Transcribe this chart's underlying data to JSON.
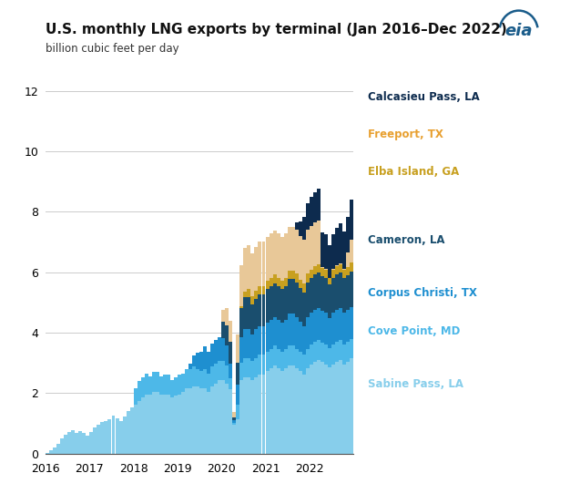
{
  "title": "U.S. monthly LNG exports by terminal (Jan 2016–Dec 2022)",
  "subtitle": "billion cubic feet per day",
  "ylim": [
    0,
    12
  ],
  "yticks": [
    0,
    2,
    4,
    6,
    8,
    10,
    12
  ],
  "xtick_years": [
    "2016",
    "2017",
    "2018",
    "2019",
    "2020",
    "2021",
    "2022"
  ],
  "bg_color": "#ffffff",
  "grid_color": "#cccccc",
  "colors": [
    "#87CEEB",
    "#4DB8E8",
    "#1E8FD0",
    "#1A4E6E",
    "#C8A020",
    "#E8C898",
    "#0D2B4E"
  ],
  "legend_labels": [
    "Calcasieu Pass, LA",
    "Freeport, TX",
    "Elba Island, GA",
    "Cameron, LA",
    "Corpus Christi, TX",
    "Cove Point, MD",
    "Sabine Pass, LA"
  ],
  "legend_text_colors": [
    "#0D2B4E",
    "#E8A030",
    "#C8A020",
    "#1A4E6E",
    "#1E8FD0",
    "#4DB8E8",
    "#87CEEB"
  ],
  "sabine_pass": [
    0.02,
    0.1,
    0.2,
    0.32,
    0.5,
    0.62,
    0.7,
    0.78,
    0.68,
    0.75,
    0.68,
    0.58,
    0.72,
    0.85,
    0.95,
    1.05,
    1.08,
    1.15,
    1.25,
    1.18,
    1.08,
    1.22,
    1.4,
    1.52,
    1.62,
    1.75,
    1.85,
    1.95,
    1.95,
    2.05,
    2.05,
    1.95,
    1.95,
    1.95,
    1.85,
    1.92,
    1.95,
    2.05,
    2.15,
    2.15,
    2.22,
    2.22,
    2.15,
    2.15,
    2.05,
    2.22,
    2.32,
    2.42,
    2.42,
    2.32,
    2.12,
    0.95,
    1.15,
    2.42,
    2.52,
    2.52,
    2.42,
    2.52,
    2.62,
    2.62,
    2.72,
    2.82,
    2.92,
    2.82,
    2.72,
    2.82,
    2.92,
    2.92,
    2.82,
    2.72,
    2.62,
    2.82,
    2.95,
    3.05,
    3.1,
    3.02,
    2.95,
    2.85,
    2.95,
    3.05,
    3.1,
    2.95,
    3.05,
    3.15
  ],
  "cove_point": [
    0.0,
    0.0,
    0.0,
    0.0,
    0.0,
    0.0,
    0.0,
    0.0,
    0.0,
    0.0,
    0.0,
    0.0,
    0.0,
    0.0,
    0.0,
    0.0,
    0.0,
    0.0,
    0.0,
    0.0,
    0.0,
    0.0,
    0.0,
    0.0,
    0.55,
    0.65,
    0.68,
    0.68,
    0.6,
    0.65,
    0.65,
    0.6,
    0.65,
    0.65,
    0.58,
    0.6,
    0.65,
    0.6,
    0.65,
    0.65,
    0.65,
    0.58,
    0.58,
    0.65,
    0.58,
    0.65,
    0.65,
    0.65,
    0.65,
    0.58,
    0.38,
    0.08,
    0.48,
    0.58,
    0.65,
    0.65,
    0.65,
    0.65,
    0.65,
    0.65,
    0.65,
    0.65,
    0.65,
    0.65,
    0.65,
    0.65,
    0.65,
    0.65,
    0.65,
    0.65,
    0.65,
    0.65,
    0.65,
    0.65,
    0.65,
    0.65,
    0.65,
    0.65,
    0.65,
    0.65,
    0.65,
    0.65,
    0.65,
    0.65
  ],
  "corpus_christi": [
    0.0,
    0.0,
    0.0,
    0.0,
    0.0,
    0.0,
    0.0,
    0.0,
    0.0,
    0.0,
    0.0,
    0.0,
    0.0,
    0.0,
    0.0,
    0.0,
    0.0,
    0.0,
    0.0,
    0.0,
    0.0,
    0.0,
    0.0,
    0.0,
    0.0,
    0.0,
    0.0,
    0.0,
    0.0,
    0.0,
    0.0,
    0.0,
    0.0,
    0.0,
    0.0,
    0.0,
    0.0,
    0.0,
    0.0,
    0.18,
    0.38,
    0.55,
    0.65,
    0.75,
    0.75,
    0.78,
    0.78,
    0.78,
    0.75,
    0.68,
    0.48,
    0.08,
    0.65,
    0.85,
    0.95,
    0.95,
    0.88,
    0.95,
    0.95,
    0.95,
    0.95,
    0.95,
    0.95,
    0.95,
    0.95,
    0.95,
    1.05,
    1.05,
    1.05,
    0.98,
    0.95,
    1.05,
    1.05,
    1.05,
    1.05,
    1.05,
    1.05,
    0.98,
    1.05,
    1.05,
    1.05,
    1.05,
    1.05,
    1.05
  ],
  "cameron": [
    0.0,
    0.0,
    0.0,
    0.0,
    0.0,
    0.0,
    0.0,
    0.0,
    0.0,
    0.0,
    0.0,
    0.0,
    0.0,
    0.0,
    0.0,
    0.0,
    0.0,
    0.0,
    0.0,
    0.0,
    0.0,
    0.0,
    0.0,
    0.0,
    0.0,
    0.0,
    0.0,
    0.0,
    0.0,
    0.0,
    0.0,
    0.0,
    0.0,
    0.0,
    0.0,
    0.0,
    0.0,
    0.0,
    0.0,
    0.0,
    0.0,
    0.0,
    0.0,
    0.0,
    0.0,
    0.0,
    0.0,
    0.0,
    0.55,
    0.65,
    0.72,
    0.08,
    0.72,
    0.95,
    1.05,
    1.05,
    0.98,
    0.98,
    1.05,
    1.05,
    1.12,
    1.12,
    1.12,
    1.12,
    1.12,
    1.12,
    1.15,
    1.15,
    1.15,
    1.12,
    1.12,
    1.15,
    1.15,
    1.18,
    1.18,
    1.15,
    1.15,
    1.12,
    1.15,
    1.18,
    1.18,
    1.15,
    1.15,
    1.18
  ],
  "elba_island": [
    0.0,
    0.0,
    0.0,
    0.0,
    0.0,
    0.0,
    0.0,
    0.0,
    0.0,
    0.0,
    0.0,
    0.0,
    0.0,
    0.0,
    0.0,
    0.0,
    0.0,
    0.0,
    0.0,
    0.0,
    0.0,
    0.0,
    0.0,
    0.0,
    0.0,
    0.0,
    0.0,
    0.0,
    0.0,
    0.0,
    0.0,
    0.0,
    0.0,
    0.0,
    0.0,
    0.0,
    0.0,
    0.0,
    0.0,
    0.0,
    0.0,
    0.0,
    0.0,
    0.0,
    0.0,
    0.0,
    0.0,
    0.0,
    0.0,
    0.0,
    0.0,
    0.0,
    0.0,
    0.08,
    0.18,
    0.28,
    0.28,
    0.28,
    0.28,
    0.28,
    0.28,
    0.28,
    0.28,
    0.28,
    0.28,
    0.28,
    0.28,
    0.28,
    0.28,
    0.28,
    0.28,
    0.28,
    0.28,
    0.28,
    0.28,
    0.28,
    0.28,
    0.2,
    0.28,
    0.28,
    0.28,
    0.28,
    0.28,
    0.28
  ],
  "freeport": [
    0.0,
    0.0,
    0.0,
    0.0,
    0.0,
    0.0,
    0.0,
    0.0,
    0.0,
    0.0,
    0.0,
    0.0,
    0.0,
    0.0,
    0.0,
    0.0,
    0.0,
    0.0,
    0.0,
    0.0,
    0.0,
    0.0,
    0.0,
    0.0,
    0.0,
    0.0,
    0.0,
    0.0,
    0.0,
    0.0,
    0.0,
    0.0,
    0.0,
    0.0,
    0.0,
    0.0,
    0.0,
    0.0,
    0.0,
    0.0,
    0.0,
    0.0,
    0.0,
    0.0,
    0.0,
    0.0,
    0.0,
    0.0,
    0.38,
    0.58,
    0.68,
    0.18,
    0.95,
    1.35,
    1.45,
    1.45,
    1.42,
    1.45,
    1.45,
    1.45,
    1.45,
    1.45,
    1.45,
    1.45,
    1.45,
    1.45,
    1.45,
    1.45,
    1.45,
    1.45,
    1.45,
    1.45,
    1.45,
    1.45,
    1.45,
    0.02,
    0.02,
    0.02,
    0.02,
    0.02,
    0.02,
    0.02,
    0.48,
    0.75
  ],
  "calcasieu_pass": [
    0.0,
    0.0,
    0.0,
    0.0,
    0.0,
    0.0,
    0.0,
    0.0,
    0.0,
    0.0,
    0.0,
    0.0,
    0.0,
    0.0,
    0.0,
    0.0,
    0.0,
    0.0,
    0.0,
    0.0,
    0.0,
    0.0,
    0.0,
    0.0,
    0.0,
    0.0,
    0.0,
    0.0,
    0.0,
    0.0,
    0.0,
    0.0,
    0.0,
    0.0,
    0.0,
    0.0,
    0.0,
    0.0,
    0.0,
    0.0,
    0.0,
    0.0,
    0.0,
    0.0,
    0.0,
    0.0,
    0.0,
    0.0,
    0.0,
    0.0,
    0.0,
    0.0,
    0.0,
    0.0,
    0.0,
    0.0,
    0.0,
    0.0,
    0.0,
    0.0,
    0.0,
    0.0,
    0.0,
    0.0,
    0.0,
    0.0,
    0.0,
    0.0,
    0.25,
    0.48,
    0.75,
    0.88,
    0.95,
    0.98,
    1.05,
    1.15,
    1.15,
    1.08,
    1.15,
    1.25,
    1.35,
    1.25,
    1.18,
    1.35
  ]
}
